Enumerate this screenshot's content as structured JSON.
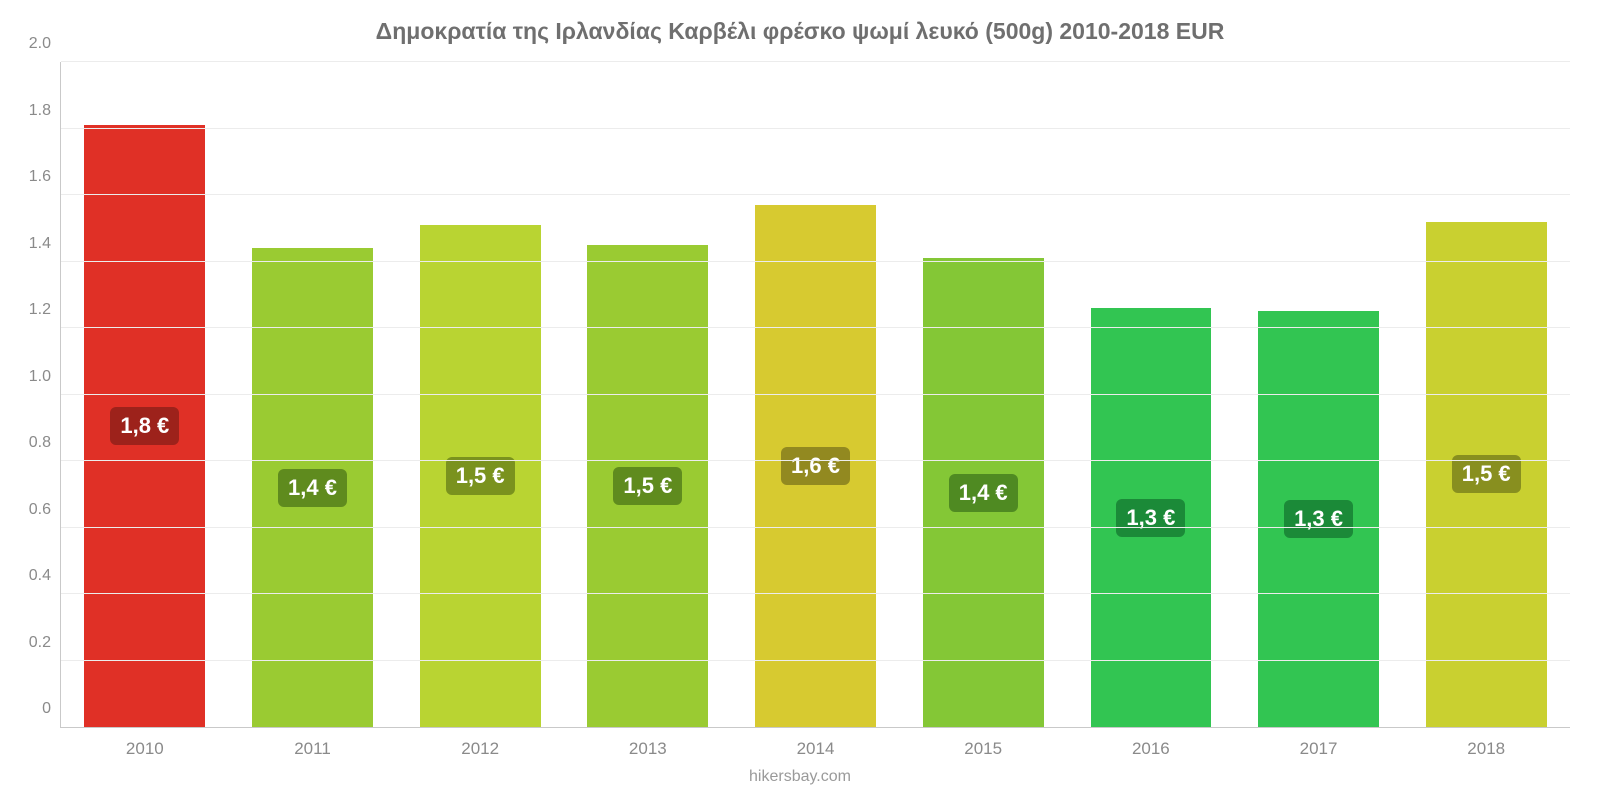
{
  "chart": {
    "type": "bar",
    "title": "Δημοκρατία της Ιρλανδίας Καρβέλι φρέσκο ψωμί λευκό (500g) 2010-2018 EUR",
    "title_fontsize": 23,
    "title_color": "#6f6f6f",
    "attribution": "hikersbay.com",
    "attribution_color": "#9a9a9a",
    "background_color": "#ffffff",
    "axis_color": "#c9c9c9",
    "grid_color": "#ececec",
    "tick_label_color": "#8a8a8a",
    "tick_label_fontsize": 16,
    "ylim": [
      0,
      2.0
    ],
    "yticks": [
      0,
      0.2,
      0.4,
      0.6,
      0.8,
      1.0,
      1.2,
      1.4,
      1.6,
      1.8,
      2.0
    ],
    "ytick_labels": [
      "0",
      "0.2",
      "0.4",
      "0.6",
      "0.8",
      "1.0",
      "1.2",
      "1.4",
      "1.6",
      "1.8",
      "2.0"
    ],
    "bar_width_pct": 72,
    "value_label_fontsize": 22,
    "value_label_color": "#ffffff",
    "categories": [
      "2010",
      "2011",
      "2012",
      "2013",
      "2014",
      "2015",
      "2016",
      "2017",
      "2018"
    ],
    "values": [
      1.81,
      1.44,
      1.51,
      1.45,
      1.57,
      1.41,
      1.26,
      1.25,
      1.52
    ],
    "value_labels": [
      "1,8 €",
      "1,4 €",
      "1,5 €",
      "1,5 €",
      "1,6 €",
      "1,4 €",
      "1,3 €",
      "1,3 €",
      "1,5 €"
    ],
    "bar_colors": [
      "#e03026",
      "#9acb32",
      "#b9d432",
      "#9acb32",
      "#d7ca30",
      "#84c736",
      "#32c552",
      "#32c552",
      "#c9d030"
    ],
    "badge_colors": [
      "#9d221b",
      "#5f8b1e",
      "#7a921e",
      "#5f8b1e",
      "#928920",
      "#4f8a22",
      "#1b8a38",
      "#1b8a38",
      "#888f1f"
    ]
  }
}
